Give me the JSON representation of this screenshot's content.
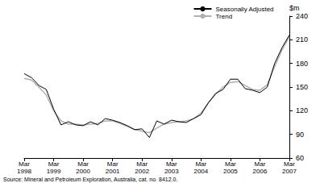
{
  "chart_data": {
    "type": "line",
    "ylabel": "$m",
    "source": "Source: Mineral and Petroleum Exploration, Australia, cat. no. 8412.0.",
    "categories": [
      "Mar 1998",
      null,
      null,
      null,
      "Mar 1999",
      null,
      null,
      null,
      "Mar 2000",
      null,
      null,
      null,
      "Mar 2001",
      null,
      null,
      null,
      "Mar 2002",
      null,
      null,
      null,
      "Mar 2003",
      null,
      null,
      null,
      "Mar 2004",
      null,
      null,
      null,
      "Mar 2005",
      null,
      null,
      null,
      "Mar 2006",
      null,
      null,
      null,
      "Mar 2007"
    ],
    "series": [
      {
        "name": "Seasonally Adjusted",
        "color": "#000000",
        "values": [
          167,
          162,
          152,
          147,
          122,
          102,
          106,
          102,
          101,
          106,
          102,
          110,
          108,
          105,
          101,
          96,
          97,
          86,
          107,
          103,
          108,
          106,
          105,
          110,
          115,
          130,
          142,
          147,
          160,
          160,
          148,
          146,
          143,
          150,
          180,
          200,
          216
        ]
      },
      {
        "name": "Trend",
        "color": "#b0b0b0",
        "values": [
          161,
          159,
          150,
          140,
          120,
          107,
          103,
          103,
          102,
          103,
          104,
          107,
          107,
          104,
          100,
          96,
          94,
          92,
          98,
          103,
          105,
          106,
          107,
          110,
          117,
          130,
          141,
          150,
          156,
          157,
          152,
          147,
          146,
          153,
          176,
          197,
          214
        ]
      }
    ],
    "ylim": [
      60,
      240
    ],
    "yticks": [
      60,
      90,
      120,
      150,
      180,
      210,
      240
    ],
    "grid": false,
    "legend": "upper right"
  }
}
